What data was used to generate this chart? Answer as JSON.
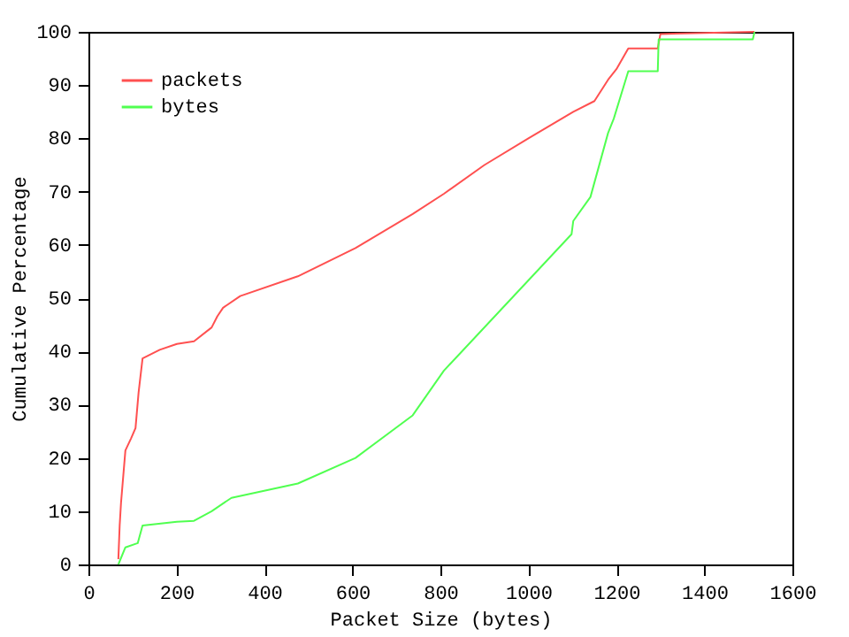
{
  "chart_data": {
    "type": "line",
    "xlabel": "Packet Size (bytes)",
    "ylabel": "Cumulative Percentage",
    "xlim": [
      0,
      1600
    ],
    "xticks": [
      0,
      200,
      400,
      600,
      800,
      1000,
      1200,
      1400,
      1600
    ],
    "ylim": [
      0,
      100
    ],
    "yticks": [
      0,
      10,
      20,
      30,
      40,
      50,
      60,
      70,
      80,
      90,
      100
    ],
    "grid": false,
    "legend": "top left",
    "marker": "none",
    "line_style": "solid",
    "series": [
      {
        "name": "packets",
        "color": "#ff5050",
        "x": [
          68,
          71,
          74,
          84,
          97,
          107,
          114,
          123,
          162,
          201,
          240,
          280,
          293,
          306,
          345,
          476,
          607,
          737,
          808,
          900,
          1000,
          1102,
          1150,
          1181,
          1200,
          1227,
          1294,
          1300,
          1514
        ],
        "values": [
          1,
          7.3,
          11.5,
          21.4,
          23.7,
          25.6,
          32.3,
          38.7,
          40.3,
          41.4,
          41.9,
          44.5,
          46.6,
          48.2,
          50.4,
          54.1,
          59.4,
          65.8,
          69.6,
          75,
          80,
          85,
          87,
          91,
          93,
          96.9,
          96.9,
          99.6,
          100
        ]
      },
      {
        "name": "bytes",
        "color": "#50ff50",
        "x": [
          68,
          84,
          112,
          123,
          201,
          240,
          280,
          325,
          397,
          476,
          607,
          737,
          808,
          1098,
          1102,
          1141,
          1181,
          1194,
          1227,
          1294,
          1296,
          1510,
          1514
        ],
        "values": [
          0,
          3.2,
          4,
          7.3,
          8,
          8.2,
          10,
          12.5,
          13.8,
          15.2,
          20,
          28,
          36.4,
          62,
          64.5,
          69,
          81,
          83.7,
          92.6,
          92.6,
          98.6,
          98.6,
          100
        ]
      }
    ]
  }
}
